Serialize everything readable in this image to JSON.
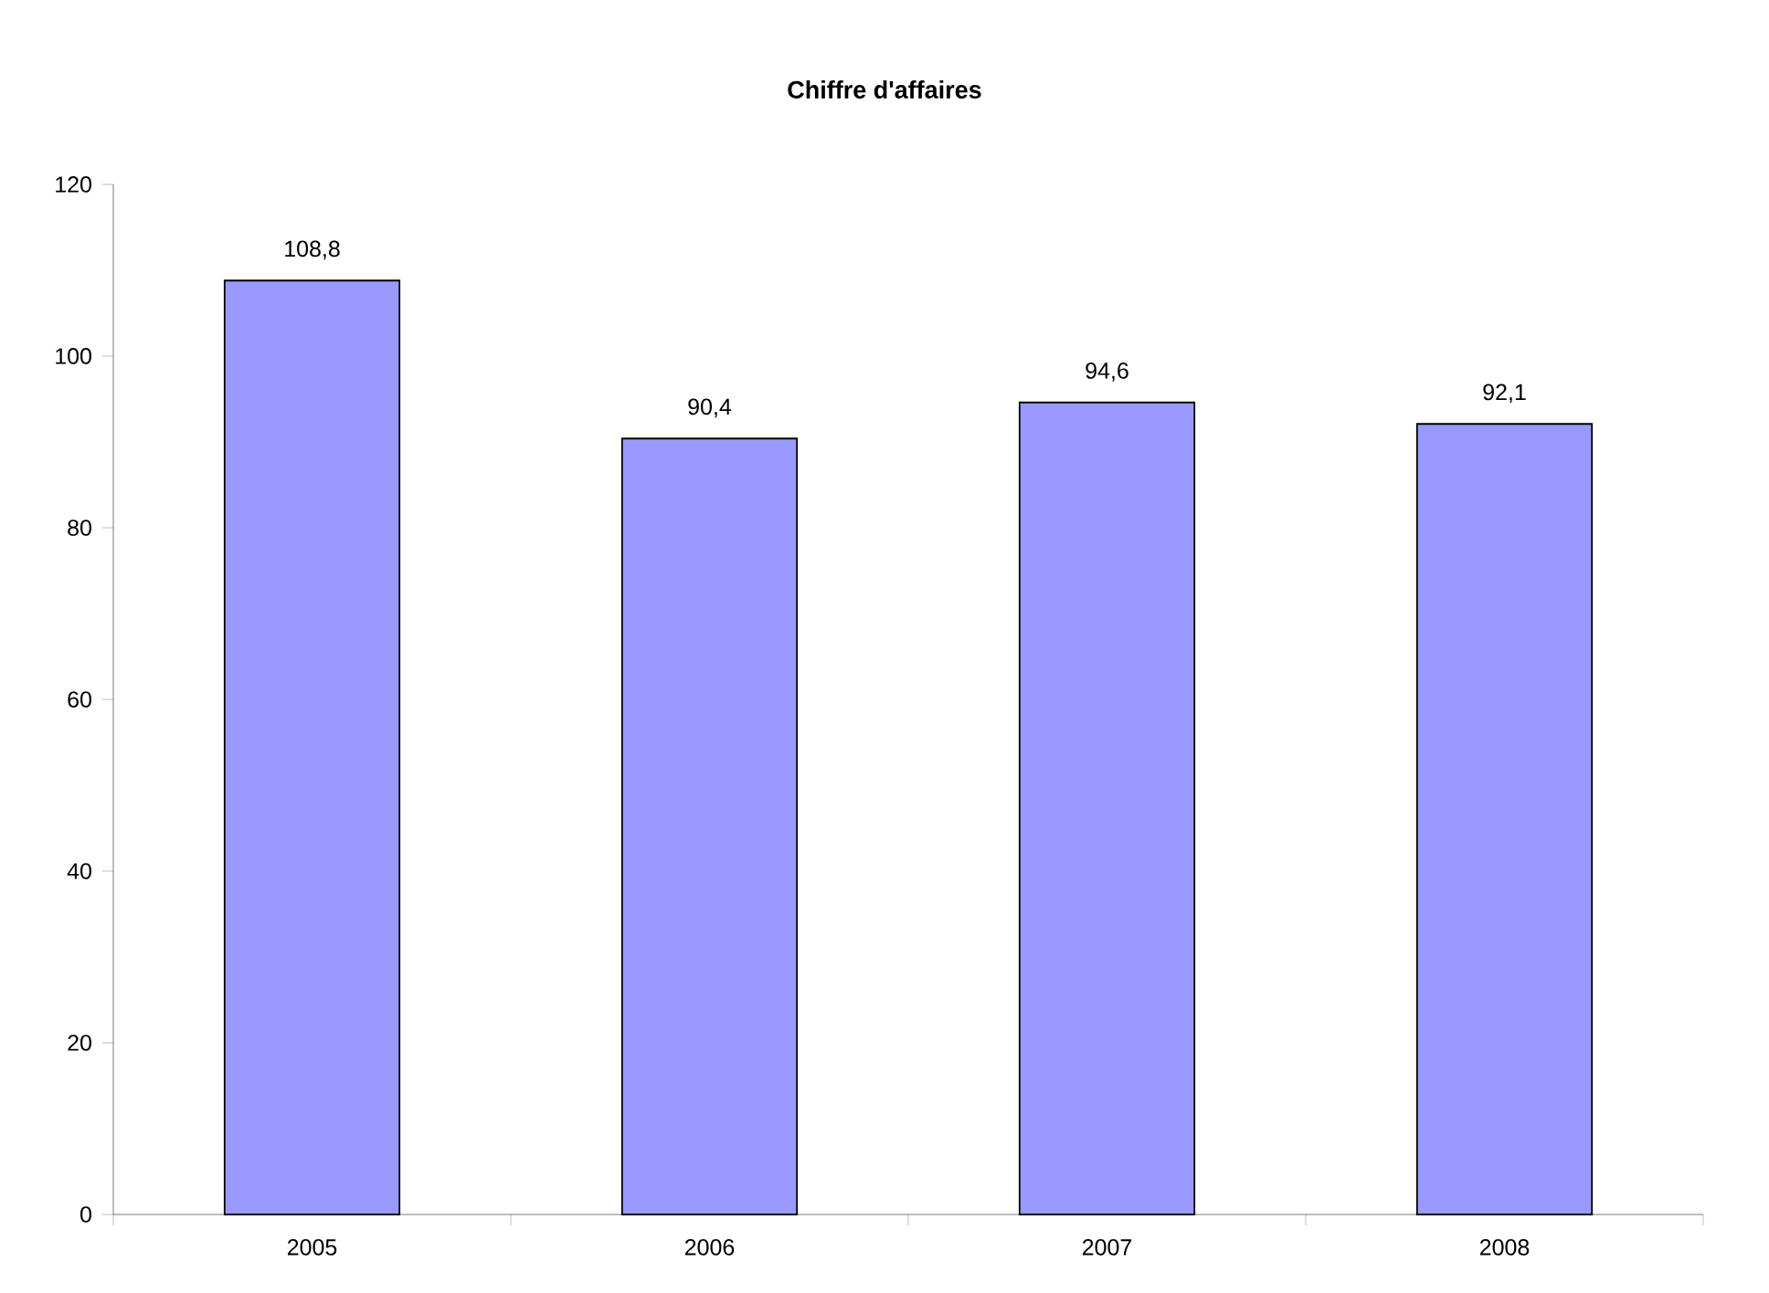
{
  "chart_data": {
    "type": "bar",
    "title": "Chiffre d'affaires",
    "categories": [
      "2005",
      "2006",
      "2007",
      "2008"
    ],
    "values": [
      108.8,
      90.4,
      94.6,
      92.1
    ],
    "value_labels": [
      "108,8",
      "90,4",
      "94,6",
      "92,1"
    ],
    "color": "#9999ff",
    "ylim": [
      0,
      120
    ],
    "yticks": [
      0,
      20,
      40,
      60,
      80,
      100,
      120
    ],
    "grid": false
  }
}
